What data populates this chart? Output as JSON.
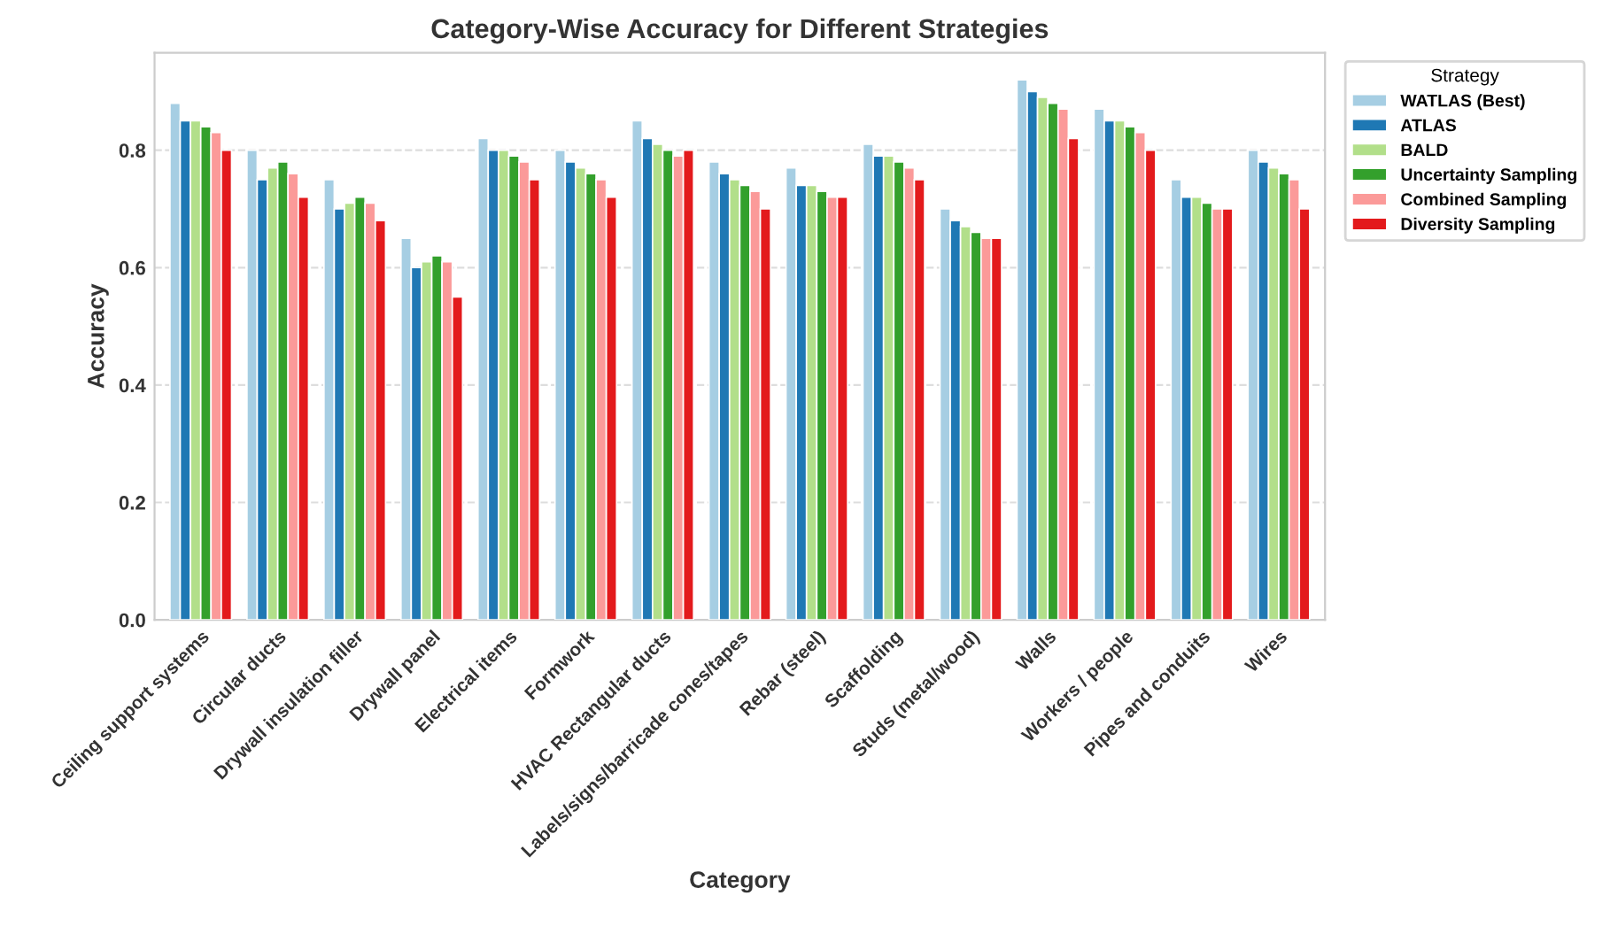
{
  "chart_data": {
    "type": "bar",
    "title": "Category-Wise Accuracy for Different Strategies",
    "xlabel": "Category",
    "ylabel": "Accuracy",
    "legend_title": "Strategy",
    "legend": "top right",
    "grid": "y",
    "categories": [
      "Ceiling support systems",
      "Circular ducts",
      "Drywall insulation filler",
      "Drywall panel",
      "Electrical items",
      "Formwork",
      "HVAC Rectangular ducts",
      "Labels/signs/barricade cones/tapes",
      "Rebar (steel)",
      "Scaffolding",
      "Studs (metal/wood)",
      "Walls",
      "Workers / people",
      "Pipes and conduits",
      "Wires"
    ],
    "ylim": [
      0,
      0.966
    ],
    "yticks": [
      {
        "value": 0,
        "label": "0.0"
      },
      0.2,
      0.4,
      0.6,
      0.8
    ],
    "series": [
      {
        "name": "WATLAS (Best)",
        "color": "#a6cee3",
        "values": [
          0.88,
          0.8,
          0.75,
          0.65,
          0.82,
          0.8,
          0.85,
          0.78,
          0.77,
          0.81,
          0.7,
          0.92,
          0.87,
          0.75,
          0.8
        ]
      },
      {
        "name": "ATLAS",
        "color": "#1f78b4",
        "values": [
          0.85,
          0.75,
          0.7,
          0.6,
          0.8,
          0.78,
          0.82,
          0.76,
          0.74,
          0.79,
          0.68,
          0.9,
          0.85,
          0.72,
          0.78
        ]
      },
      {
        "name": "BALD",
        "color": "#b2df8a",
        "values": [
          0.85,
          0.77,
          0.71,
          0.61,
          0.8,
          0.77,
          0.81,
          0.75,
          0.74,
          0.79,
          0.67,
          0.89,
          0.85,
          0.72,
          0.77
        ]
      },
      {
        "name": "Uncertainty Sampling",
        "color": "#33a02c",
        "values": [
          0.84,
          0.78,
          0.72,
          0.62,
          0.79,
          0.76,
          0.8,
          0.74,
          0.73,
          0.78,
          0.66,
          0.88,
          0.84,
          0.71,
          0.76
        ]
      },
      {
        "name": "Combined Sampling",
        "color": "#fb9a99",
        "values": [
          0.83,
          0.76,
          0.71,
          0.61,
          0.78,
          0.75,
          0.79,
          0.73,
          0.72,
          0.77,
          0.65,
          0.87,
          0.83,
          0.7,
          0.75
        ]
      },
      {
        "name": "Diversity Sampling",
        "color": "#e31a1c",
        "values": [
          0.8,
          0.72,
          0.68,
          0.55,
          0.75,
          0.72,
          0.8,
          0.7,
          0.72,
          0.75,
          0.65,
          0.82,
          0.8,
          0.7,
          0.7
        ]
      }
    ]
  }
}
